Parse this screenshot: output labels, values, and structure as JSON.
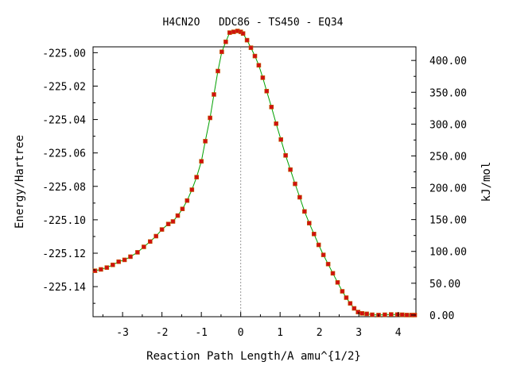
{
  "chart_data": {
    "type": "line",
    "title": "H4CN2O   DDC86 - TS450 - EQ34",
    "xlabel": "Reaction Path Length/A amu^{1/2}",
    "ylabel": "Energy/Hartree",
    "y2label": "kJ/mol",
    "xlim": [
      -3.75,
      4.45
    ],
    "ylim": [
      -225.158,
      -224.9965
    ],
    "y2lim": [
      -2.6,
      421.4
    ],
    "x_ticks": [
      -3,
      -2,
      -1,
      0,
      1,
      2,
      3,
      4
    ],
    "x_tick_labels": [
      "-3",
      "-2",
      "-1",
      "0",
      "1",
      "2",
      "3",
      "4"
    ],
    "y_ticks": [
      -225.14,
      -225.12,
      -225.1,
      -225.08,
      -225.06,
      -225.04,
      -225.02,
      -225.0
    ],
    "y_tick_labels": [
      "-225.14",
      "-225.12",
      "-225.10",
      "-225.08",
      "-225.06",
      "-225.04",
      "-225.02",
      "-225.00"
    ],
    "y2_ticks": [
      0,
      50,
      100,
      150,
      200,
      250,
      300,
      350,
      400
    ],
    "y2_tick_labels": [
      "0.00",
      "50.00",
      "100.00",
      "150.00",
      "200.00",
      "250.00",
      "300.00",
      "350.00",
      "400.00"
    ],
    "ts_x": 0,
    "grid": false,
    "colors": {
      "line": "#00a000",
      "marker": "#d01010",
      "marker_edge": "#c06000",
      "ts_line": "#999999"
    },
    "series": [
      {
        "x": [
          -3.7,
          -3.55,
          -3.4,
          -3.25,
          -3.1,
          -2.95,
          -2.8,
          -2.62,
          -2.46,
          -2.3,
          -2.15,
          -2.0,
          -1.84,
          -1.72,
          -1.6,
          -1.48,
          -1.36,
          -1.24,
          -1.12,
          -1.0,
          -0.9,
          -0.78,
          -0.68,
          -0.58,
          -0.48,
          -0.38,
          -0.28,
          -0.18,
          -0.08,
          0.0,
          0.06,
          0.16,
          0.26,
          0.36,
          0.46,
          0.56,
          0.66,
          0.78,
          0.9,
          1.02,
          1.14,
          1.26,
          1.38,
          1.5,
          1.62,
          1.74,
          1.86,
          1.98,
          2.1,
          2.22,
          2.34,
          2.46,
          2.58,
          2.68,
          2.78,
          2.88,
          2.98,
          3.08,
          3.2,
          3.34,
          3.5,
          3.66,
          3.82,
          3.98,
          4.1,
          4.22,
          4.34,
          4.42
        ],
        "y": [
          -225.1305,
          -225.1297,
          -225.1286,
          -225.127,
          -225.1251,
          -225.124,
          -225.1221,
          -225.1195,
          -225.1162,
          -225.113,
          -225.1098,
          -225.1058,
          -225.1025,
          -225.101,
          -225.0975,
          -225.0935,
          -225.0885,
          -225.082,
          -225.0745,
          -225.065,
          -225.053,
          -225.039,
          -225.025,
          -225.011,
          -224.9995,
          -224.9935,
          -224.988,
          -224.9875,
          -224.987,
          -224.9875,
          -224.9885,
          -224.9925,
          -224.997,
          -225.002,
          -225.0075,
          -225.015,
          -225.023,
          -225.0325,
          -225.0425,
          -225.052,
          -225.0615,
          -225.07,
          -225.0785,
          -225.0865,
          -225.095,
          -225.102,
          -225.1085,
          -225.115,
          -225.121,
          -225.1265,
          -225.132,
          -225.1375,
          -225.1428,
          -225.1466,
          -225.15,
          -225.153,
          -225.1552,
          -225.156,
          -225.1563,
          -225.1568,
          -225.157,
          -225.1568,
          -225.1566,
          -225.1567,
          -225.1568,
          -225.157,
          -225.157,
          -225.157
        ]
      }
    ]
  }
}
